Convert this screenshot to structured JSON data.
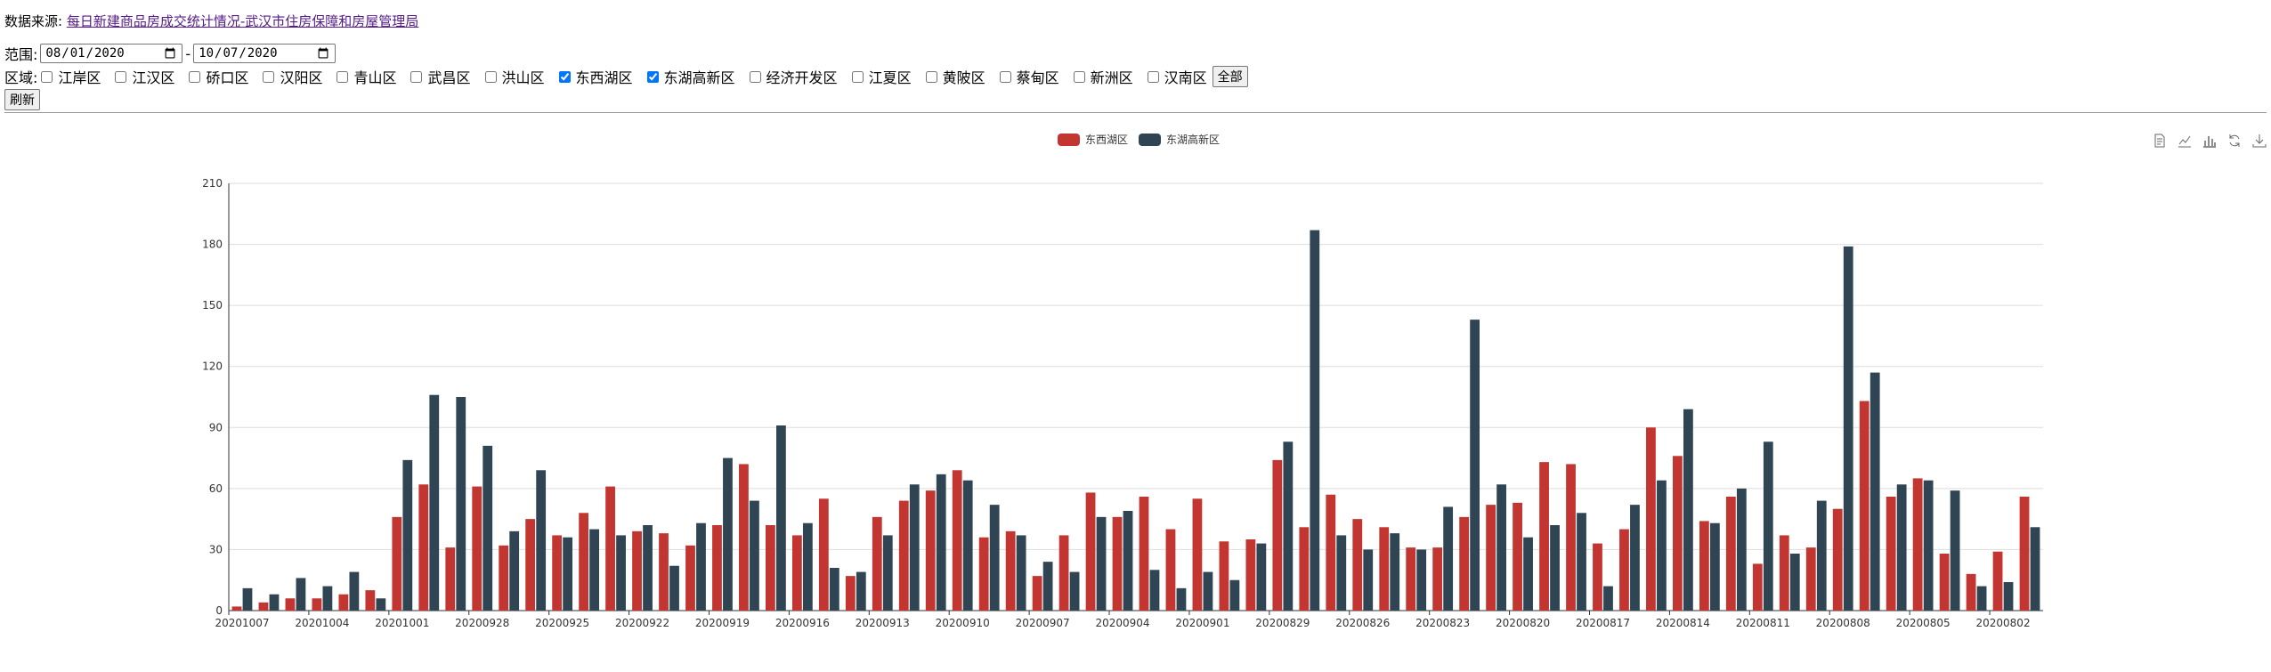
{
  "source": {
    "label": "数据来源:",
    "link_text": "每日新建商品房成交统计情况-武汉市住房保障和房屋管理局"
  },
  "range": {
    "label": "范围:",
    "start": "2020-08-01",
    "sep": "-",
    "end": "2020-10-07"
  },
  "district": {
    "label": "区域:",
    "items": [
      {
        "name": "江岸区",
        "checked": false
      },
      {
        "name": "江汉区",
        "checked": false
      },
      {
        "name": "硚口区",
        "checked": false
      },
      {
        "name": "汉阳区",
        "checked": false
      },
      {
        "name": "青山区",
        "checked": false
      },
      {
        "name": "武昌区",
        "checked": false
      },
      {
        "name": "洪山区",
        "checked": false
      },
      {
        "name": "东西湖区",
        "checked": true
      },
      {
        "name": "东湖高新区",
        "checked": true
      },
      {
        "name": "经济开发区",
        "checked": false
      },
      {
        "name": "江夏区",
        "checked": false
      },
      {
        "name": "黄陂区",
        "checked": false
      },
      {
        "name": "蔡甸区",
        "checked": false
      },
      {
        "name": "新洲区",
        "checked": false
      },
      {
        "name": "汉南区",
        "checked": false
      }
    ],
    "all_button": "全部"
  },
  "refresh_button": "刷新",
  "toolbox": [
    "data-view-icon",
    "line-chart-icon",
    "bar-chart-icon",
    "restore-icon",
    "save-image-icon"
  ],
  "colors": {
    "series0": "#c23531",
    "series1": "#2f4554",
    "grid": "#ddd",
    "axis": "#333"
  },
  "chart_data": {
    "type": "bar",
    "ylim": [
      0,
      210
    ],
    "yticks": [
      0,
      30,
      60,
      90,
      120,
      150,
      180,
      210
    ],
    "legend_position": "top-center",
    "categories": [
      "20201007",
      "20201006",
      "20201005",
      "20201004",
      "20201003",
      "20201002",
      "20201001",
      "20200930",
      "20200929",
      "20200928",
      "20200927",
      "20200926",
      "20200925",
      "20200924",
      "20200923",
      "20200922",
      "20200921",
      "20200920",
      "20200919",
      "20200918",
      "20200917",
      "20200916",
      "20200915",
      "20200914",
      "20200913",
      "20200912",
      "20200911",
      "20200910",
      "20200909",
      "20200908",
      "20200907",
      "20200906",
      "20200905",
      "20200904",
      "20200903",
      "20200902",
      "20200901",
      "20200831",
      "20200830",
      "20200829",
      "20200828",
      "20200827",
      "20200826",
      "20200825",
      "20200824",
      "20200823",
      "20200822",
      "20200821",
      "20200820",
      "20200819",
      "20200818",
      "20200817",
      "20200816",
      "20200815",
      "20200814",
      "20200813",
      "20200812",
      "20200811",
      "20200810",
      "20200809",
      "20200808",
      "20200807",
      "20200806",
      "20200805",
      "20200804",
      "20200803",
      "20200802",
      "20200801"
    ],
    "series": [
      {
        "name": "东西湖区",
        "values": [
          2,
          4,
          6,
          6,
          8,
          10,
          46,
          62,
          31,
          61,
          32,
          45,
          37,
          48,
          61,
          39,
          38,
          32,
          42,
          72,
          42,
          37,
          55,
          17,
          46,
          54,
          59,
          69,
          36,
          39,
          17,
          37,
          58,
          46,
          56,
          40,
          55,
          34,
          35,
          74,
          41,
          57,
          45,
          41,
          31,
          31,
          46,
          52,
          53,
          73,
          72,
          33,
          40,
          90,
          76,
          44,
          56,
          23,
          37,
          31,
          50,
          103,
          56,
          65,
          28,
          18,
          29,
          56
        ]
      },
      {
        "name": "东湖高新区",
        "values": [
          11,
          8,
          16,
          12,
          19,
          6,
          74,
          106,
          105,
          81,
          39,
          69,
          36,
          40,
          37,
          42,
          22,
          43,
          75,
          54,
          91,
          43,
          21,
          19,
          37,
          62,
          67,
          64,
          52,
          37,
          24,
          19,
          46,
          49,
          20,
          11,
          19,
          15,
          33,
          83,
          187,
          37,
          30,
          38,
          30,
          51,
          143,
          62,
          36,
          42,
          48,
          12,
          52,
          64,
          99,
          43,
          60,
          83,
          28,
          54,
          179,
          117,
          62,
          64,
          59,
          12,
          14,
          41
        ]
      }
    ],
    "xtick_labels": [
      "20201007",
      "20201004",
      "20201001",
      "20200928",
      "20200925",
      "20200922",
      "20200919",
      "20200916",
      "20200913",
      "20200910",
      "20200907",
      "20200904",
      "20200901",
      "20200829",
      "20200826",
      "20200823",
      "20200820",
      "20200817",
      "20200814",
      "20200811",
      "20200808",
      "20200805",
      "20200802"
    ]
  }
}
